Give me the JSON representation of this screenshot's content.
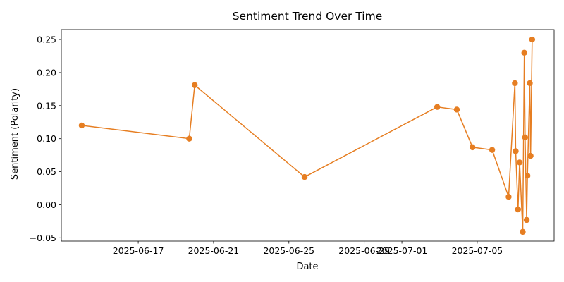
{
  "chart_data": {
    "type": "line",
    "title": "Sentiment Trend Over Time",
    "xlabel": "Date",
    "ylabel": "Sentiment (Polarity)",
    "color": "#E67E22",
    "grid": false,
    "legend": null,
    "xlim": [
      "2025-06-12T22:00",
      "2025-07-09T02:00"
    ],
    "ylim": [
      -0.055,
      0.265
    ],
    "x_ticks": [
      "2025-06-17",
      "2025-06-21",
      "2025-06-25",
      "2025-06-29",
      "2025-07-01",
      "2025-07-05"
    ],
    "x_tick_labels": [
      "2025-06-17",
      "2025-06-21",
      "2025-06-25",
      "2025-06-29",
      "2025-07-01",
      "2025-07-05"
    ],
    "y_ticks": [
      -0.05,
      0.0,
      0.05,
      0.1,
      0.15,
      0.2,
      0.25
    ],
    "y_tick_labels": [
      "−0.05",
      "0.00",
      "0.05",
      "0.10",
      "0.15",
      "0.20",
      "0.25"
    ],
    "series": [
      {
        "x": [
          "2025-06-14T00:00",
          "2025-06-19T17:00",
          "2025-06-20T00:00",
          "2025-06-25T20:00",
          "2025-07-02T21:00",
          "2025-07-03T22:00",
          "2025-07-04T18:00",
          "2025-07-05T19:00",
          "2025-07-06T16:00",
          "2025-07-07T00:00",
          "2025-07-07T01:00",
          "2025-07-07T04:00",
          "2025-07-07T06:00",
          "2025-07-07T10:00",
          "2025-07-07T12:00",
          "2025-07-07T13:00",
          "2025-07-07T15:00",
          "2025-07-07T16:00",
          "2025-07-07T19:00",
          "2025-07-07T20:00",
          "2025-07-07T22:00"
        ],
        "values": [
          0.12,
          0.1,
          0.181,
          0.042,
          0.148,
          0.144,
          0.087,
          0.083,
          0.012,
          0.184,
          0.081,
          -0.007,
          0.064,
          -0.041,
          0.23,
          0.102,
          -0.023,
          0.044,
          0.184,
          0.074,
          0.25
        ]
      }
    ]
  }
}
